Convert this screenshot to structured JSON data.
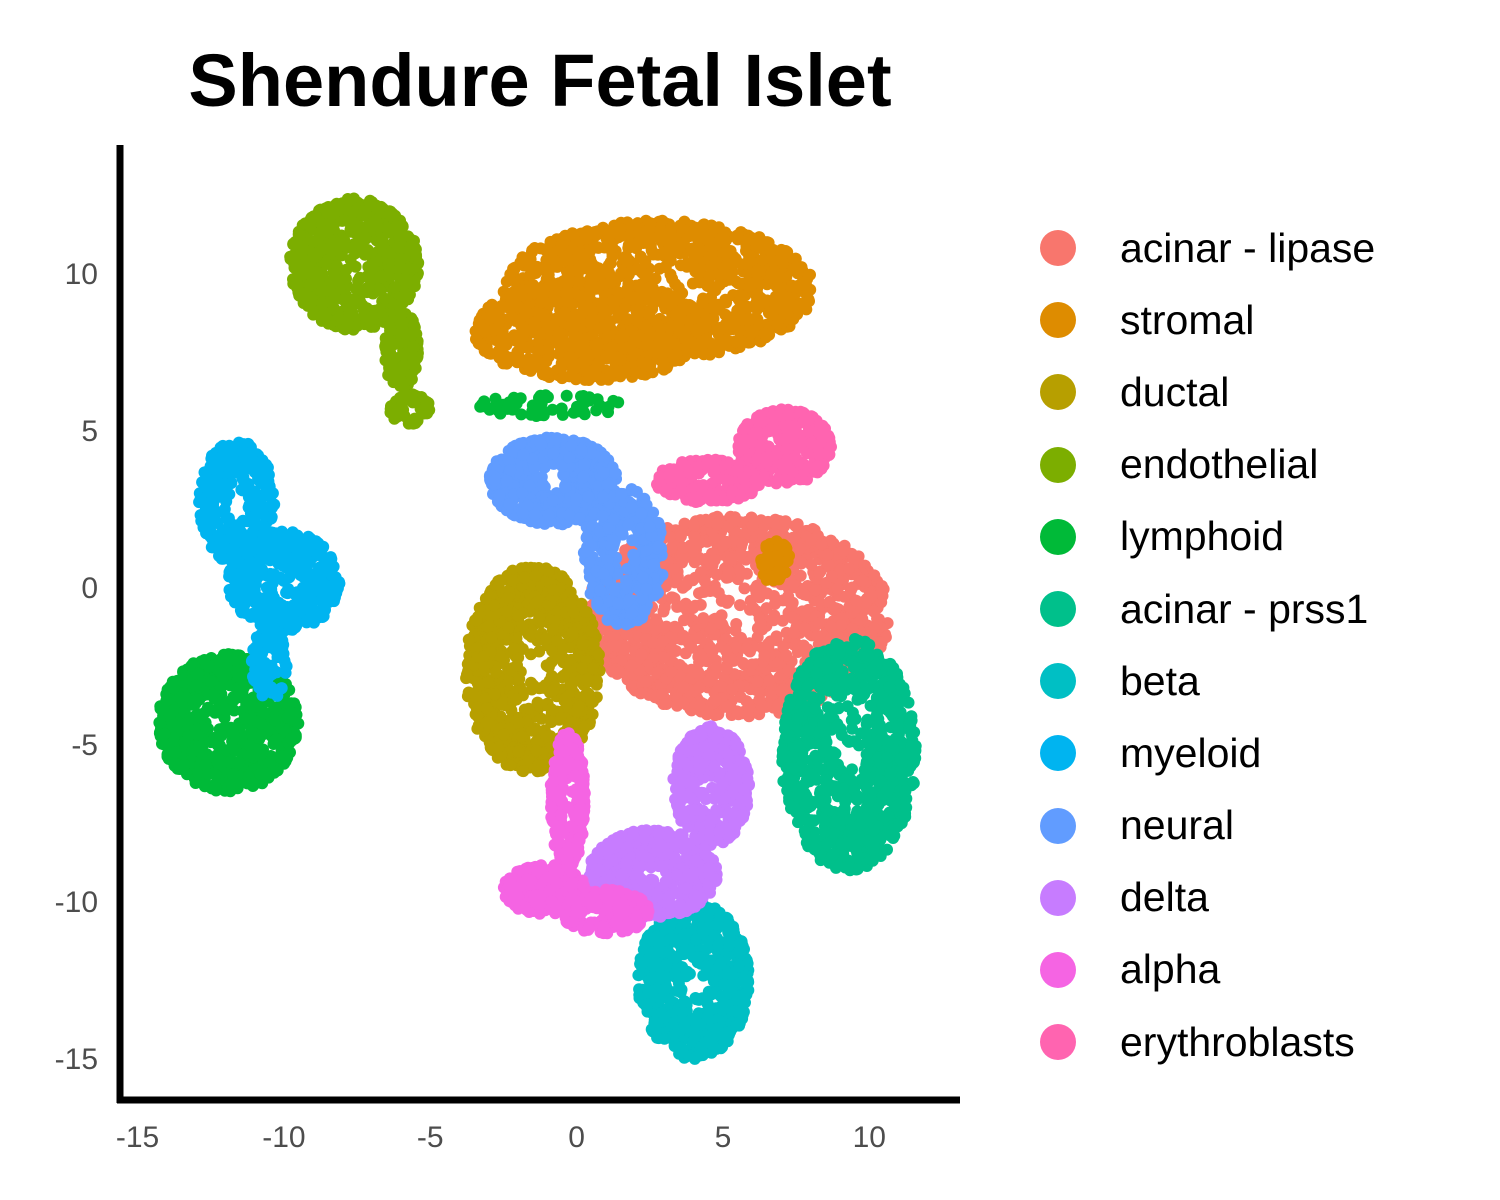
{
  "chart_data": {
    "type": "scatter",
    "title": "Shendure Fetal Islet",
    "xlabel": "",
    "ylabel": "",
    "xlim": [
      -15.6,
      13.1
    ],
    "ylim": [
      -16.3,
      14.1
    ],
    "x_ticks": [
      -15,
      -10,
      -5,
      0,
      5,
      10
    ],
    "y_ticks": [
      -15,
      -10,
      -5,
      0,
      5,
      10
    ],
    "x_tick_labels": [
      "-15",
      "-10",
      "-5",
      "0",
      "5",
      "10"
    ],
    "y_tick_labels": [
      "-15",
      "-10",
      "-5",
      "0",
      "5",
      "10"
    ],
    "grid": false,
    "legend_position": "right",
    "series": [
      {
        "name": "acinar - lipase",
        "color": "#F8766D",
        "clusters": [
          {
            "cx": 5.5,
            "cy": -0.9,
            "rx": 5.2,
            "ry": 3.2,
            "n": 1500
          }
        ]
      },
      {
        "name": "stromal",
        "color": "#DE8C00",
        "clusters": [
          {
            "cx": 2.8,
            "cy": 9.5,
            "rx": 5.3,
            "ry": 2.2,
            "n": 1000
          },
          {
            "cx": 0.5,
            "cy": 8.2,
            "rx": 4.0,
            "ry": 1.6,
            "n": 600
          },
          {
            "cx": 6.8,
            "cy": 0.8,
            "rx": 0.5,
            "ry": 0.7,
            "n": 60
          }
        ]
      },
      {
        "name": "ductal",
        "color": "#B79F00",
        "clusters": [
          {
            "cx": -1.5,
            "cy": -2.6,
            "rx": 2.3,
            "ry": 3.3,
            "n": 900
          }
        ]
      },
      {
        "name": "endothelial",
        "color": "#7CAE00",
        "clusters": [
          {
            "cx": -7.6,
            "cy": 10.3,
            "rx": 2.2,
            "ry": 2.1,
            "n": 650
          },
          {
            "cx": -6.0,
            "cy": 7.6,
            "rx": 0.6,
            "ry": 1.3,
            "n": 120
          },
          {
            "cx": -5.7,
            "cy": 5.7,
            "rx": 0.7,
            "ry": 0.5,
            "n": 60
          }
        ]
      },
      {
        "name": "lymphoid",
        "color": "#00BA38",
        "clusters": [
          {
            "cx": -11.9,
            "cy": -4.3,
            "rx": 2.4,
            "ry": 2.2,
            "n": 800
          },
          {
            "cx": -0.9,
            "cy": 5.8,
            "rx": 2.6,
            "ry": 0.35,
            "n": 60
          }
        ]
      },
      {
        "name": "acinar - prss1",
        "color": "#00C08B",
        "clusters": [
          {
            "cx": 9.3,
            "cy": -5.3,
            "rx": 2.3,
            "ry": 3.7,
            "n": 850
          }
        ]
      },
      {
        "name": "beta",
        "color": "#00BFC4",
        "clusters": [
          {
            "cx": 4.0,
            "cy": -12.5,
            "rx": 1.9,
            "ry": 2.5,
            "n": 600
          }
        ]
      },
      {
        "name": "myeloid",
        "color": "#00B4F0",
        "clusters": [
          {
            "cx": -11.6,
            "cy": 2.7,
            "rx": 1.3,
            "ry": 2.0,
            "n": 300
          },
          {
            "cx": -10.0,
            "cy": 0.2,
            "rx": 1.9,
            "ry": 1.6,
            "n": 400
          },
          {
            "cx": -10.5,
            "cy": -2.4,
            "rx": 0.6,
            "ry": 1.2,
            "n": 80
          }
        ]
      },
      {
        "name": "neural",
        "color": "#619CFF",
        "clusters": [
          {
            "cx": -0.8,
            "cy": 3.4,
            "rx": 2.2,
            "ry": 1.4,
            "n": 500
          },
          {
            "cx": 1.6,
            "cy": 1.0,
            "rx": 1.4,
            "ry": 2.2,
            "n": 350
          }
        ]
      },
      {
        "name": "delta",
        "color": "#C77CFF",
        "clusters": [
          {
            "cx": 2.6,
            "cy": -9.1,
            "rx": 2.2,
            "ry": 1.4,
            "n": 550
          },
          {
            "cx": 4.6,
            "cy": -6.3,
            "rx": 1.3,
            "ry": 1.9,
            "n": 350
          }
        ]
      },
      {
        "name": "alpha",
        "color": "#F564E3",
        "clusters": [
          {
            "cx": -1.1,
            "cy": -9.6,
            "rx": 1.4,
            "ry": 0.8,
            "n": 250
          },
          {
            "cx": -0.3,
            "cy": -6.8,
            "rx": 0.6,
            "ry": 2.2,
            "n": 250
          },
          {
            "cx": 1.0,
            "cy": -10.3,
            "rx": 1.6,
            "ry": 0.7,
            "n": 150
          }
        ]
      },
      {
        "name": "erythroblasts",
        "color": "#FF64B0",
        "clusters": [
          {
            "cx": 7.1,
            "cy": 4.5,
            "rx": 1.6,
            "ry": 1.2,
            "n": 300
          },
          {
            "cx": 4.5,
            "cy": 3.4,
            "rx": 1.8,
            "ry": 0.7,
            "n": 200
          }
        ]
      }
    ]
  }
}
